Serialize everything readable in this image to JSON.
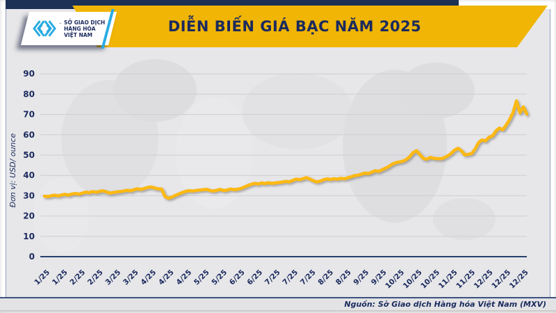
{
  "header": {
    "title": "DIỄN BIẾN GIÁ BẠC NĂM 2025",
    "logo": {
      "org_lines": [
        "SỞ GIAO DỊCH",
        "HÀNG HÓA",
        "VIỆT NAM"
      ],
      "trademark": "™"
    }
  },
  "footer": {
    "source": "Nguồn: Sở Giao dịch Hàng hóa Việt Nam (MXV)"
  },
  "colors": {
    "banner_gold": "#F0B505",
    "line_gold": "#FDB913",
    "navy": "#1B2A5E",
    "cyan": "#29ABE2",
    "grid": "#CDCED3",
    "chart_bg": "#E7E7E9"
  },
  "chart_data": {
    "type": "line",
    "title": "DIỄN BIẾN GIÁ BẠC NĂM 2025",
    "xlabel": "",
    "ylabel": "Đơn vị: USD/ ounce",
    "ylim": [
      0,
      90
    ],
    "yticks": [
      0,
      10,
      20,
      30,
      40,
      50,
      60,
      70,
      80,
      90
    ],
    "grid": true,
    "legend_position": "none",
    "x_labels": [
      "1/25",
      "1/25",
      "2/25",
      "2/25",
      "3/25",
      "3/25",
      "4/25",
      "4/25",
      "4/25",
      "5/25",
      "5/25",
      "6/25",
      "6/25",
      "7/25",
      "7/25",
      "7/25",
      "8/25",
      "8/25",
      "9/25",
      "9/25",
      "10/25",
      "10/25",
      "10/25",
      "11/25",
      "11/25",
      "12/25",
      "12/25",
      "12/25"
    ],
    "series": [
      {
        "name": "Giá bạc (USD/ounce)",
        "color": "#FDB913",
        "values": [
          29.8,
          29.6,
          30.0,
          30.3,
          29.9,
          30.4,
          30.7,
          30.3,
          30.9,
          31.1,
          30.8,
          31.3,
          31.8,
          31.5,
          32.1,
          31.7,
          32.2,
          32.4,
          31.9,
          31.3,
          31.6,
          31.9,
          32.1,
          32.3,
          32.7,
          32.4,
          33.0,
          33.4,
          33.1,
          33.6,
          34.1,
          34.3,
          33.8,
          33.4,
          33.3,
          29.6,
          28.8,
          29.3,
          30.2,
          30.9,
          31.6,
          32.2,
          32.5,
          32.3,
          32.6,
          32.8,
          32.9,
          33.2,
          32.6,
          32.3,
          32.7,
          33.1,
          32.5,
          32.8,
          33.3,
          33.0,
          33.2,
          33.6,
          34.3,
          35.0,
          35.6,
          36.1,
          35.8,
          36.3,
          36.0,
          36.4,
          36.1,
          36.3,
          36.5,
          36.7,
          37.1,
          36.8,
          37.5,
          38.2,
          37.9,
          38.4,
          38.9,
          38.3,
          37.4,
          36.8,
          37.2,
          37.9,
          38.3,
          38.0,
          38.4,
          38.1,
          38.6,
          38.3,
          38.8,
          39.3,
          39.9,
          40.1,
          40.6,
          41.2,
          40.9,
          41.6,
          42.3,
          42.0,
          42.8,
          43.6,
          44.5,
          45.6,
          46.3,
          46.6,
          47.0,
          47.8,
          49.2,
          51.3,
          52.2,
          50.2,
          48.3,
          48.0,
          48.9,
          48.4,
          48.3,
          48.2,
          48.7,
          49.6,
          50.8,
          52.4,
          53.4,
          52.2,
          50.1,
          50.4,
          50.8,
          53.0,
          56.2,
          57.5,
          57.0,
          58.8,
          59.4,
          61.8,
          63.3,
          62.5,
          64.8,
          67.5,
          71.0,
          76.7,
          70.8,
          73.8,
          70.2
        ]
      }
    ]
  }
}
